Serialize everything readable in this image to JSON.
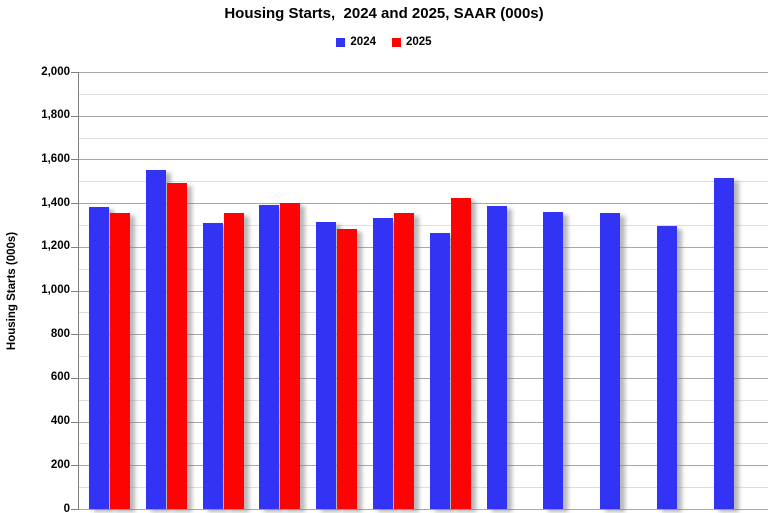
{
  "chart_data": {
    "type": "bar",
    "title": "Housing Starts,  2024 and 2025, SAAR (000s)",
    "xlabel": "",
    "ylabel": "Housing Starts (000s)",
    "ylim": [
      0,
      2000
    ],
    "ytick_step": 200,
    "minor_gridline_step": 100,
    "yticks": [
      "0",
      "200",
      "400",
      "600",
      "800",
      "1,000",
      "1,200",
      "1,400",
      "1,600",
      "1,800",
      "2,000"
    ],
    "grid": true,
    "legend_position": "top-center",
    "categories": [
      "",
      "",
      "",
      "",
      "",
      "",
      "",
      "",
      "",
      "",
      "",
      ""
    ],
    "series": [
      {
        "name": "2024",
        "color": "#3333f5",
        "values": [
          1380,
          1550,
          1310,
          1390,
          1315,
          1330,
          1265,
          1387,
          1360,
          1355,
          1293,
          1515
        ]
      },
      {
        "name": "2025",
        "color": "#fc0404",
        "values": [
          1355,
          1490,
          1357,
          1400,
          1283,
          1355,
          1425,
          null,
          null,
          null,
          null,
          null
        ]
      }
    ],
    "colors": {
      "major_gridline": "#a8a8a8",
      "minor_gridline": "#dedede",
      "axis_line": "#7f7f7f",
      "text": "#000000"
    }
  }
}
